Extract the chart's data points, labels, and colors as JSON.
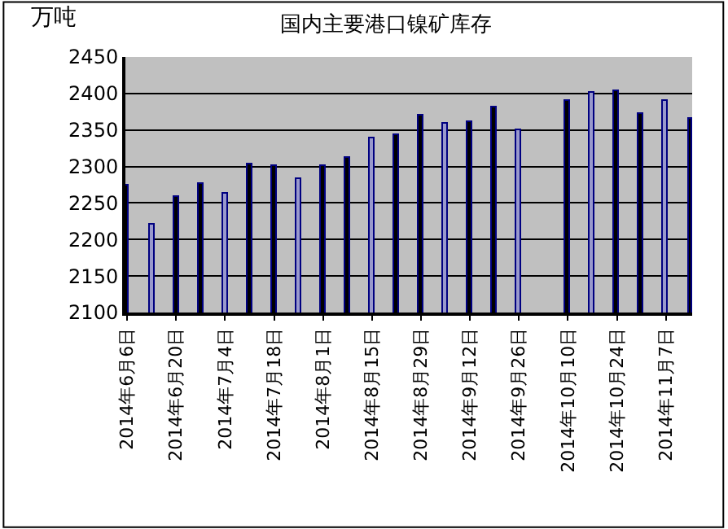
{
  "chart_data": {
    "type": "bar",
    "title": "国内主要港口镍矿库存",
    "ylabel": "万吨",
    "x": [
      "2014-06-06",
      "2014-06-13",
      "2014-06-20",
      "2014-06-27",
      "2014-07-04",
      "2014-07-11",
      "2014-07-18",
      "2014-07-25",
      "2014-08-01",
      "2014-08-08",
      "2014-08-15",
      "2014-08-22",
      "2014-08-29",
      "2014-09-05",
      "2014-09-12",
      "2014-09-19",
      "2014-09-26",
      "2014-10-03",
      "2014-10-10",
      "2014-10-17",
      "2014-10-24",
      "2014-10-31",
      "2014-11-07",
      "2014-11-14"
    ],
    "values": [
      2274,
      2221,
      2259,
      2276,
      2263,
      2303,
      2300,
      2283,
      2300,
      2312,
      2339,
      2342,
      2370,
      2359,
      2361,
      2380,
      2350,
      null,
      2390,
      2402,
      2403,
      2372,
      2390,
      2366
    ],
    "colors": [
      "#000000",
      "#9999cc",
      "#000000",
      "#000000",
      "#9999cc",
      "#000000",
      "#000000",
      "#9999cc",
      "#000000",
      "#000000",
      "#9999cc",
      "#000000",
      "#000000",
      "#9999cc",
      "#000000",
      "#000000",
      "#9999cc",
      "#000000",
      "#000000",
      "#9999cc",
      "#000000",
      "#000000",
      "#9999cc",
      "#000000"
    ],
    "xlim": [
      "2014-06-05T12:00",
      "2014-11-14T12:00"
    ],
    "xticks": [
      {
        "value": "2014-06-06",
        "label": "2014年6月6日"
      },
      {
        "value": "2014-06-20",
        "label": "2014年6月20日"
      },
      {
        "value": "2014-07-04",
        "label": "2014年7月4日"
      },
      {
        "value": "2014-07-18",
        "label": "2014年7月18日"
      },
      {
        "value": "2014-08-01",
        "label": "2014年8月1日"
      },
      {
        "value": "2014-08-15",
        "label": "2014年8月15日"
      },
      {
        "value": "2014-08-29",
        "label": "2014年8月29日"
      },
      {
        "value": "2014-09-12",
        "label": "2014年9月12日"
      },
      {
        "value": "2014-09-26",
        "label": "2014年9月26日"
      },
      {
        "value": "2014-10-10",
        "label": "2014年10月10日"
      },
      {
        "value": "2014-10-24",
        "label": "2014年10月24日"
      },
      {
        "value": "2014-11-07",
        "label": "2014年11月7日"
      }
    ],
    "ylim": [
      2100,
      2450
    ],
    "yticks": [
      2100,
      2150,
      2200,
      2250,
      2300,
      2350,
      2400,
      2450
    ],
    "grid": "y",
    "legend": false
  }
}
